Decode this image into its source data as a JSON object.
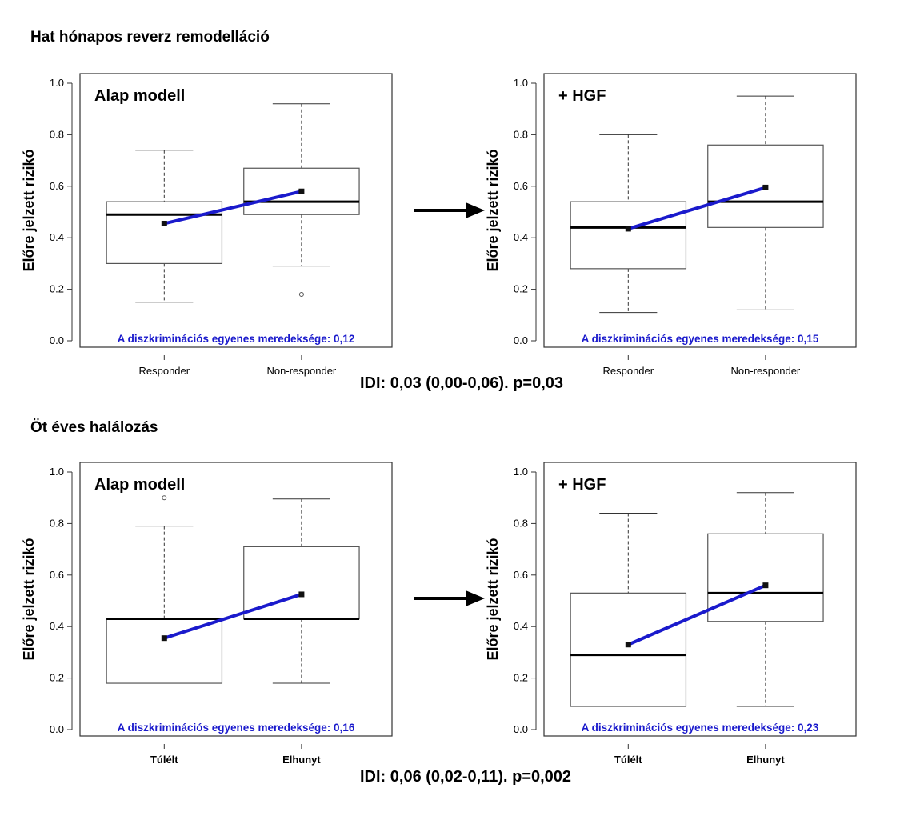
{
  "figure": {
    "sections": [
      {
        "title": "Hat hónapos reverz remodelláció",
        "idi": "IDI: 0,03 (0,00-0,06). p=0,03"
      },
      {
        "title": "Öt éves halálozás",
        "idi": "IDI: 0,06 (0,02-0,11). p=0,002"
      }
    ],
    "colors": {
      "slope_line": "#1a1acc",
      "slope_text": "#1a1acc",
      "box_stroke": "#555555",
      "arrow": "#000000"
    },
    "icons": [
      "arrow-right-icon",
      "arrow-right-icon"
    ]
  },
  "chart_data": [
    {
      "type": "box",
      "panel_label": "Alap modell",
      "ylabel": "Előre jelzett rizikó",
      "ylim": [
        0,
        1.0
      ],
      "yticks": [
        "0.0",
        "0.2",
        "0.4",
        "0.6",
        "0.8",
        "1.0"
      ],
      "categories": [
        "Responder",
        "Non-responder"
      ],
      "x_tick_bold": false,
      "boxes": [
        {
          "whisker_low": 0.15,
          "q1": 0.3,
          "median": 0.49,
          "q3": 0.54,
          "whisker_high": 0.74,
          "mean": 0.455,
          "outliers": []
        },
        {
          "whisker_low": 0.29,
          "q1": 0.49,
          "median": 0.54,
          "q3": 0.67,
          "whisker_high": 0.92,
          "mean": 0.58,
          "outliers": [
            0.18
          ]
        }
      ],
      "slope_label": "A diszkriminációs egyenes meredeksége: 0,12"
    },
    {
      "type": "box",
      "panel_label": "+ HGF",
      "ylabel": "Előre jelzett rizikó",
      "ylim": [
        0,
        1.0
      ],
      "yticks": [
        "0.0",
        "0.2",
        "0.4",
        "0.6",
        "0.8",
        "1.0"
      ],
      "categories": [
        "Responder",
        "Non-responder"
      ],
      "x_tick_bold": false,
      "boxes": [
        {
          "whisker_low": 0.11,
          "q1": 0.28,
          "median": 0.44,
          "q3": 0.54,
          "whisker_high": 0.8,
          "mean": 0.435,
          "outliers": []
        },
        {
          "whisker_low": 0.12,
          "q1": 0.44,
          "median": 0.54,
          "q3": 0.76,
          "whisker_high": 0.95,
          "mean": 0.595,
          "outliers": []
        }
      ],
      "slope_label": "A diszkriminációs egyenes meredeksége: 0,15"
    },
    {
      "type": "box",
      "panel_label": "Alap modell",
      "ylabel": "Előre jelzett rizikó",
      "ylim": [
        0,
        1.0
      ],
      "yticks": [
        "0.0",
        "0.2",
        "0.4",
        "0.6",
        "0.8",
        "1.0"
      ],
      "categories": [
        "Túlélt",
        "Elhunyt"
      ],
      "x_tick_bold": true,
      "boxes": [
        {
          "whisker_low": 0.18,
          "q1": 0.18,
          "median": 0.43,
          "q3": 0.43,
          "whisker_high": 0.79,
          "mean": 0.355,
          "outliers": [
            0.9
          ]
        },
        {
          "whisker_low": 0.18,
          "q1": 0.43,
          "median": 0.43,
          "q3": 0.71,
          "whisker_high": 0.895,
          "mean": 0.525,
          "outliers": []
        }
      ],
      "slope_label": "A diszkriminációs egyenes meredeksége: 0,16"
    },
    {
      "type": "box",
      "panel_label": "+ HGF",
      "ylabel": "Előre jelzett rizikó",
      "ylim": [
        0,
        1.0
      ],
      "yticks": [
        "0.0",
        "0.2",
        "0.4",
        "0.6",
        "0.8",
        "1.0"
      ],
      "categories": [
        "Túlélt",
        "Elhunyt"
      ],
      "x_tick_bold": true,
      "boxes": [
        {
          "whisker_low": 0.09,
          "q1": 0.09,
          "median": 0.29,
          "q3": 0.53,
          "whisker_high": 0.84,
          "mean": 0.33,
          "outliers": []
        },
        {
          "whisker_low": 0.09,
          "q1": 0.42,
          "median": 0.53,
          "q3": 0.76,
          "whisker_high": 0.92,
          "mean": 0.56,
          "outliers": []
        }
      ],
      "slope_label": "A diszkriminációs egyenes meredeksége: 0,23"
    }
  ]
}
